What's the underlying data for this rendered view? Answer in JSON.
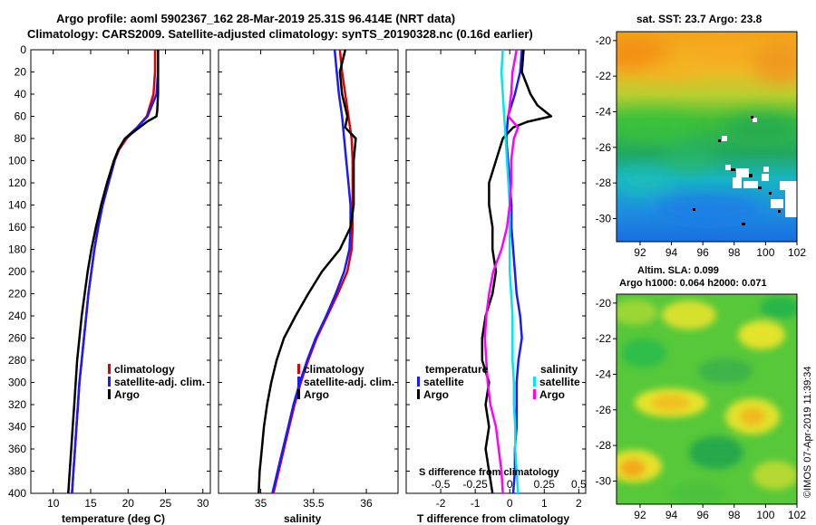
{
  "header": {
    "line1": "Argo profile: aoml 5902367_162 28-Mar-2019 25.31S 96.414E (NRT data)",
    "line2": "Climatology: CARS2009. Satellite-adjusted climatology: synTS_20190328.nc (0.16d earlier)"
  },
  "colors": {
    "climatology": "#e00000",
    "satellite": "#1a1aff",
    "argo": "#000000",
    "sat_salinity": "#00e5ee",
    "argo_salinity": "#ff00ff"
  },
  "chart_data": [
    {
      "type": "line",
      "id": "temperature",
      "xlabel": "temperature (deg C)",
      "ylabel": "",
      "xlim": [
        7,
        31
      ],
      "ylim": [
        400,
        0
      ],
      "xticks": [
        10,
        15,
        20,
        25,
        30
      ],
      "yticks": [
        0,
        20,
        40,
        60,
        80,
        100,
        120,
        140,
        160,
        180,
        200,
        220,
        240,
        260,
        280,
        300,
        320,
        340,
        360,
        380,
        400
      ],
      "legend": [
        "climatology",
        "satellite-adj. clim.",
        "Argo"
      ],
      "series": [
        {
          "name": "climatology",
          "depth": [
            0,
            20,
            40,
            60,
            70,
            80,
            90,
            100,
            120,
            140,
            160,
            180,
            200,
            220,
            240,
            260,
            280,
            300,
            320,
            340,
            360,
            380,
            400
          ],
          "values": [
            23.6,
            23.6,
            23.4,
            22.5,
            21.2,
            19.8,
            18.8,
            18.2,
            17.4,
            16.6,
            16.0,
            15.5,
            15.1,
            14.7,
            14.4,
            14.1,
            13.8,
            13.5,
            13.3,
            13.1,
            12.9,
            12.7,
            12.5
          ]
        },
        {
          "name": "satellite-adj. clim.",
          "depth": [
            0,
            20,
            40,
            60,
            70,
            80,
            90,
            100,
            120,
            140,
            160,
            180,
            200,
            220,
            240,
            260,
            280,
            300,
            320,
            340,
            360,
            380,
            400
          ],
          "values": [
            24.0,
            24.0,
            23.8,
            22.6,
            21.2,
            19.6,
            18.7,
            18.2,
            17.4,
            16.6,
            16.0,
            15.5,
            15.1,
            14.7,
            14.4,
            14.1,
            13.8,
            13.5,
            13.3,
            13.1,
            12.9,
            12.7,
            12.5
          ]
        },
        {
          "name": "Argo",
          "depth": [
            0,
            20,
            40,
            55,
            60,
            65,
            80,
            90,
            100,
            120,
            140,
            160,
            180,
            200,
            220,
            240,
            260,
            280,
            300,
            320,
            340,
            360,
            380,
            400
          ],
          "values": [
            24.0,
            24.0,
            24.0,
            23.9,
            23.8,
            22.5,
            19.6,
            18.7,
            18.1,
            17.2,
            16.4,
            15.7,
            15.1,
            14.6,
            14.2,
            13.8,
            13.5,
            13.2,
            13.0,
            12.8,
            12.6,
            12.4,
            12.2,
            12.0
          ]
        }
      ]
    },
    {
      "type": "line",
      "id": "salinity",
      "xlabel": "salinity",
      "xlim": [
        34.6,
        36.3
      ],
      "ylim": [
        400,
        0
      ],
      "xticks": [
        35,
        35.5,
        36
      ],
      "xticklabels": [
        "35",
        "35.5",
        "36"
      ],
      "legend": [
        "climatology",
        "satellite-adj. clim.",
        "Argo"
      ],
      "series": [
        {
          "name": "climatology",
          "depth": [
            0,
            20,
            40,
            60,
            80,
            100,
            120,
            140,
            160,
            180,
            200,
            220,
            240,
            260,
            280,
            300,
            320,
            340,
            360,
            380,
            400
          ],
          "values": [
            35.75,
            35.77,
            35.8,
            35.83,
            35.86,
            35.87,
            35.87,
            35.87,
            35.87,
            35.86,
            35.82,
            35.73,
            35.63,
            35.53,
            35.45,
            35.38,
            35.32,
            35.27,
            35.22,
            35.17,
            35.12
          ]
        },
        {
          "name": "satellite-adj. clim.",
          "depth": [
            0,
            20,
            40,
            60,
            80,
            100,
            120,
            140,
            160,
            180,
            200,
            220,
            240,
            260,
            280,
            300,
            320,
            340,
            360,
            380,
            400
          ],
          "values": [
            35.7,
            35.72,
            35.74,
            35.77,
            35.79,
            35.81,
            35.83,
            35.85,
            35.85,
            35.84,
            35.79,
            35.71,
            35.62,
            35.52,
            35.44,
            35.37,
            35.31,
            35.26,
            35.21,
            35.16,
            35.11
          ]
        },
        {
          "name": "Argo",
          "depth": [
            0,
            20,
            40,
            60,
            70,
            80,
            100,
            120,
            140,
            160,
            180,
            200,
            220,
            240,
            260,
            280,
            300,
            320,
            340,
            360,
            380,
            400
          ],
          "values": [
            35.8,
            35.75,
            35.77,
            35.82,
            35.8,
            35.9,
            35.88,
            35.88,
            35.88,
            35.85,
            35.75,
            35.58,
            35.45,
            35.33,
            35.22,
            35.15,
            35.1,
            35.06,
            35.03,
            35.01,
            34.99,
            34.98
          ]
        }
      ]
    },
    {
      "type": "line",
      "id": "differences",
      "xlabel": "T difference from climatology",
      "secondary_xlabel": "S difference from climatology",
      "xlim": [
        -3.0,
        2.2
      ],
      "ylim": [
        400,
        0
      ],
      "xticks": [
        -2,
        -1,
        0,
        1,
        2
      ],
      "xticklabels": [
        "-2",
        "-1",
        "0",
        "1",
        "2"
      ],
      "secondary_xticklabels": [
        "-0.5",
        "-0.25",
        "0",
        "0.25",
        "0.5"
      ],
      "legend_temperature_title": "temperature",
      "legend_salinity_title": "salinity",
      "legend_temperature": [
        "satellite",
        "Argo"
      ],
      "legend_salinity": [
        "satellite",
        "Argo"
      ],
      "series": [
        {
          "name": "T satellite",
          "depth": [
            0,
            20,
            40,
            60,
            80,
            100,
            120,
            140,
            160,
            180,
            200,
            220,
            240,
            260,
            280,
            300,
            320,
            340,
            360,
            380,
            400
          ],
          "values": [
            0.35,
            0.3,
            0.15,
            -0.05,
            -0.1,
            -0.05,
            0.0,
            0.05,
            0.05,
            0.1,
            0.15,
            0.2,
            0.3,
            0.35,
            0.25,
            0.2,
            0.2,
            0.2,
            0.15,
            0.15,
            0.1
          ]
        },
        {
          "name": "T Argo",
          "depth": [
            0,
            20,
            40,
            50,
            60,
            65,
            70,
            80,
            100,
            120,
            140,
            160,
            180,
            200,
            220,
            240,
            260,
            280,
            300,
            320,
            340,
            360,
            380,
            400
          ],
          "values": [
            0.4,
            0.35,
            0.6,
            0.8,
            1.2,
            0.5,
            0.1,
            -0.2,
            -0.4,
            -0.6,
            -0.6,
            -0.5,
            -0.5,
            -0.4,
            -0.5,
            -0.7,
            -0.8,
            -0.8,
            -0.6,
            -0.7,
            -0.6,
            -0.7,
            -0.6,
            -0.5
          ]
        },
        {
          "name": "S satellite",
          "depth": [
            0,
            20,
            40,
            60,
            80,
            100,
            120,
            140,
            160,
            180,
            200,
            220,
            240,
            260,
            280,
            300,
            320,
            340,
            360,
            380,
            400
          ],
          "values": [
            -0.05,
            -0.06,
            -0.05,
            -0.04,
            -0.03,
            -0.02,
            -0.01,
            0.0,
            0.0,
            0.0,
            0.0,
            0.01,
            0.02,
            0.02,
            0.02,
            0.03,
            0.03,
            0.04,
            0.04,
            0.05,
            0.06
          ]
        },
        {
          "name": "S Argo",
          "depth": [
            0,
            20,
            40,
            60,
            70,
            80,
            100,
            120,
            140,
            160,
            180,
            200,
            220,
            240,
            260,
            280,
            300,
            320,
            340,
            360,
            380,
            400
          ],
          "values": [
            0.05,
            0.02,
            0.01,
            -0.01,
            0.06,
            0.03,
            0.01,
            0.01,
            0.0,
            -0.02,
            -0.06,
            -0.12,
            -0.15,
            -0.17,
            -0.18,
            -0.17,
            -0.16,
            -0.14,
            -0.1,
            -0.08,
            -0.06,
            -0.05
          ]
        }
      ]
    },
    {
      "type": "heatmap",
      "id": "sst_map",
      "title": "sat. SST: 23.7 Argo: 23.8",
      "xlim": [
        90.5,
        102
      ],
      "ylim": [
        -31.3,
        -19.5
      ],
      "xticks": [
        92,
        94,
        96,
        98,
        100,
        102
      ],
      "yticks": [
        -20,
        -22,
        -24,
        -26,
        -28,
        -30
      ]
    },
    {
      "type": "heatmap",
      "id": "sla_map",
      "title_line1": "Altim. SLA: 0.099",
      "title_line2": "Argo h1000: 0.064 h2000: 0.071",
      "xlim": [
        90.5,
        102
      ],
      "ylim": [
        -31.3,
        -19.5
      ],
      "xticks": [
        92,
        94,
        96,
        98,
        100,
        102
      ],
      "yticks": [
        -20,
        -22,
        -24,
        -26,
        -28,
        -30
      ]
    }
  ],
  "footer": {
    "credit": "©IMOS 07-Apr-2019 11:39:34"
  }
}
